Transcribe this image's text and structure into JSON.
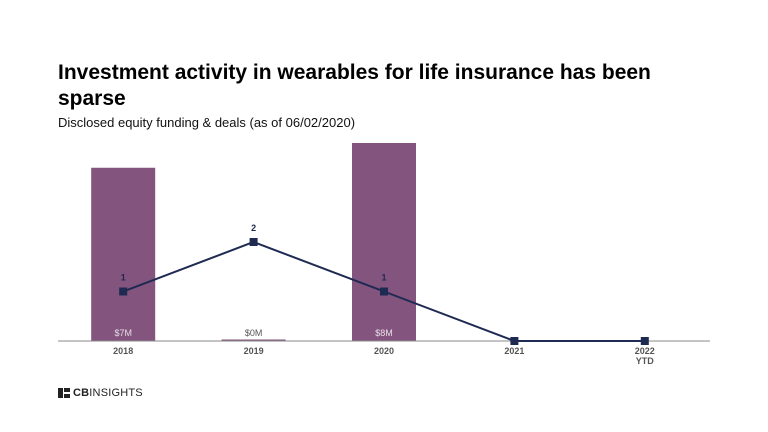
{
  "header": {
    "title": "Investment activity in wearables for life insurance has been sparse",
    "subtitle": "Disclosed equity funding & deals (as of 06/02/2020)"
  },
  "chart_data": {
    "type": "bar",
    "categories": [
      [
        "2018"
      ],
      [
        "2019"
      ],
      [
        "2020"
      ],
      [
        "2021"
      ],
      [
        "2022",
        "YTD"
      ]
    ],
    "series": [
      {
        "type": "bar",
        "values": [
          7,
          0,
          8,
          null,
          null
        ],
        "labels": [
          "$7M",
          "$0M",
          "$8M",
          "",
          ""
        ],
        "color": "#83547e"
      },
      {
        "type": "line",
        "values": [
          1,
          2,
          1,
          0,
          0
        ],
        "labels": [
          "1",
          "2",
          "1",
          "",
          ""
        ],
        "color": "#1e2a52"
      }
    ],
    "ylim_bar": [
      0,
      8
    ],
    "ylim_line": [
      0,
      4
    ],
    "grid": false,
    "legend": "none"
  },
  "logo": {
    "brand_bold": "CB",
    "brand_rest": "INSIGHTS"
  }
}
